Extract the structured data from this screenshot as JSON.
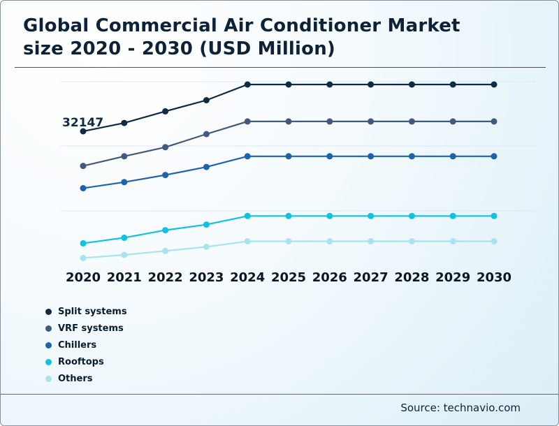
{
  "page": {
    "title_line1": "Global Commercial Air Conditioner Market",
    "title_line2": "size 2020 - 2030 (USD Million)",
    "source_label": "Source: technavio.com"
  },
  "chart_data": {
    "type": "line",
    "title": "Global Commercial Air Conditioner Market size 2020 - 2030 (USD Million)",
    "x_labels": [
      "2020",
      "2021",
      "2022",
      "2023",
      "2024",
      "2025",
      "2026",
      "2027",
      "2028",
      "2029",
      "2030"
    ],
    "series": [
      {
        "name": "Split systems",
        "color": "#0e2a47",
        "values": [
          32147,
          33800,
          36100,
          38300,
          41400,
          41400,
          41400,
          41400,
          41400,
          41400,
          41400
        ]
      },
      {
        "name": "VRF systems",
        "color": "#41597f",
        "values": [
          25300,
          27200,
          29000,
          31600,
          34100,
          34100,
          34100,
          34100,
          34100,
          34100,
          34100
        ]
      },
      {
        "name": "Chillers",
        "color": "#1d62ad",
        "values": [
          20900,
          22100,
          23500,
          25100,
          27200,
          27200,
          27200,
          27200,
          27200,
          27200,
          27200
        ]
      },
      {
        "name": "Rooftops",
        "color": "#0fc2e2",
        "values": [
          10000,
          11100,
          12600,
          13700,
          15400,
          15400,
          15400,
          15400,
          15400,
          15400,
          15400
        ]
      },
      {
        "name": "Others",
        "color": "#a9e2f0",
        "values": [
          7100,
          7700,
          8500,
          9300,
          10400,
          10400,
          10400,
          10400,
          10400,
          10400,
          10400
        ]
      }
    ],
    "annotation": {
      "text": "32147",
      "series": "Split systems",
      "x_label": "2020"
    },
    "legend_position": "bottom-left",
    "grid": "faint horizontal",
    "ylim": [
      0,
      45000
    ],
    "values_note": "Only the 2020 Split systems value (32147) is labeled in the chart; all other values are estimated from line positions."
  }
}
